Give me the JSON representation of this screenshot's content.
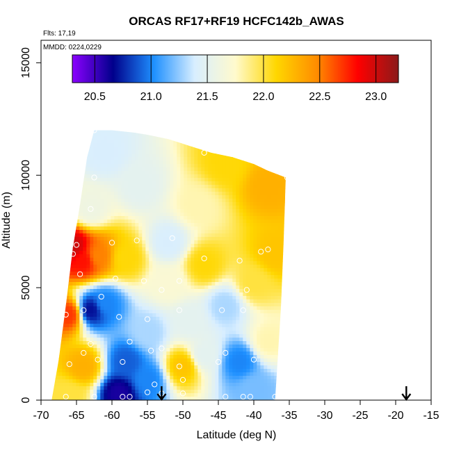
{
  "chart_data": {
    "type": "heatmap",
    "title": "ORCAS RF17+RF19 HCFC142b_AWAS",
    "annotations": [
      "Flts: 17,19",
      "MMDD: 0224,0229"
    ],
    "xlabel": "Latitude (deg N)",
    "ylabel": "Altitude (m)",
    "xlim": [
      -70,
      -15
    ],
    "ylim": [
      0,
      16000
    ],
    "x_ticks": [
      -70,
      -65,
      -60,
      -55,
      -50,
      -45,
      -40,
      -35,
      -30,
      -25,
      -20,
      -15
    ],
    "y_ticks": [
      0,
      5000,
      10000,
      15000
    ],
    "colorbar": {
      "range": [
        20.3,
        23.2
      ],
      "ticks": [
        "20.5",
        "21.0",
        "21.5",
        "22.0",
        "22.5",
        "23.0"
      ],
      "colors": [
        "#8b00ff",
        "#00008b",
        "#1e90ff",
        "#d8eeff",
        "#fffacd",
        "#ffd700",
        "#ff8c00",
        "#ff0000",
        "#8b1a1a"
      ]
    },
    "arrows_at_latitude": [
      -53,
      -18.5
    ],
    "envelope": [
      {
        "lat": -68.5,
        "top": 0
      },
      {
        "lat": -67.5,
        "top": 1800
      },
      {
        "lat": -66.5,
        "top": 4200
      },
      {
        "lat": -65.5,
        "top": 6800
      },
      {
        "lat": -64.5,
        "top": 8700
      },
      {
        "lat": -63.5,
        "top": 10800
      },
      {
        "lat": -62.5,
        "top": 12000
      },
      {
        "lat": -60,
        "top": 12000
      },
      {
        "lat": -57,
        "top": 11900
      },
      {
        "lat": -55,
        "top": 11800
      },
      {
        "lat": -52,
        "top": 11600
      },
      {
        "lat": -49,
        "top": 11300
      },
      {
        "lat": -46,
        "top": 11000
      },
      {
        "lat": -43,
        "top": 10800
      },
      {
        "lat": -40,
        "top": 10500
      },
      {
        "lat": -38,
        "top": 10200
      },
      {
        "lat": -35.5,
        "top": 9900
      }
    ],
    "right_edge": [
      {
        "alt": 9900,
        "lat": -35.5
      },
      {
        "alt": 7000,
        "lat": -35.8
      },
      {
        "alt": 4000,
        "lat": -36.2
      },
      {
        "alt": 2000,
        "lat": -36.6
      },
      {
        "alt": 0,
        "lat": -37
      }
    ],
    "field_anchors": [
      {
        "lat": -65.5,
        "alt": 6800,
        "value": 23.0
      },
      {
        "lat": -64,
        "alt": 6200,
        "value": 22.8
      },
      {
        "lat": -62,
        "alt": 6400,
        "value": 22.5
      },
      {
        "lat": -58,
        "alt": 6300,
        "value": 22.1
      },
      {
        "lat": -66,
        "alt": 3800,
        "value": 22.7
      },
      {
        "lat": -63,
        "alt": 4000,
        "value": 20.7
      },
      {
        "lat": -61,
        "alt": 4300,
        "value": 21.0
      },
      {
        "lat": -58,
        "alt": 1700,
        "value": 20.9
      },
      {
        "lat": -59,
        "alt": 300,
        "value": 20.6
      },
      {
        "lat": -64,
        "alt": 1500,
        "value": 22.3
      },
      {
        "lat": -66,
        "alt": 200,
        "value": 22.0
      },
      {
        "lat": -55,
        "alt": 900,
        "value": 21.0
      },
      {
        "lat": -50,
        "alt": 1500,
        "value": 22.2
      },
      {
        "lat": -47,
        "alt": 2000,
        "value": 21.5
      },
      {
        "lat": -42,
        "alt": 1700,
        "value": 21.0
      },
      {
        "lat": -40,
        "alt": 500,
        "value": 21.2
      },
      {
        "lat": -38,
        "alt": 2600,
        "value": 21.8
      },
      {
        "lat": -44,
        "alt": 4200,
        "value": 21.3
      },
      {
        "lat": -40,
        "alt": 5200,
        "value": 22.0
      },
      {
        "lat": -37,
        "alt": 6500,
        "value": 22.2
      },
      {
        "lat": -38,
        "alt": 9500,
        "value": 22.3
      },
      {
        "lat": -44,
        "alt": 10500,
        "value": 22.1
      },
      {
        "lat": -48,
        "alt": 8600,
        "value": 21.8
      },
      {
        "lat": -52,
        "alt": 7000,
        "value": 21.4
      },
      {
        "lat": -56,
        "alt": 9500,
        "value": 21.5
      },
      {
        "lat": -61,
        "alt": 11000,
        "value": 21.4
      },
      {
        "lat": -63,
        "alt": 8500,
        "value": 21.6
      },
      {
        "lat": -52,
        "alt": 5200,
        "value": 21.7
      },
      {
        "lat": -47,
        "alt": 6000,
        "value": 22.1
      },
      {
        "lat": -55,
        "alt": 3000,
        "value": 21.3
      },
      {
        "lat": -49,
        "alt": 3500,
        "value": 21.5
      }
    ],
    "sample_points": [
      {
        "lat": -62.5,
        "alt": 12000
      },
      {
        "lat": -62.5,
        "alt": 9900
      },
      {
        "lat": -63,
        "alt": 8500
      },
      {
        "lat": -47,
        "alt": 11000
      },
      {
        "lat": -35.3,
        "alt": 9900
      },
      {
        "lat": -65,
        "alt": 6900
      },
      {
        "lat": -65.5,
        "alt": 6500
      },
      {
        "lat": -64.5,
        "alt": 5600
      },
      {
        "lat": -60,
        "alt": 7000
      },
      {
        "lat": -56.5,
        "alt": 7100
      },
      {
        "lat": -51.5,
        "alt": 7200
      },
      {
        "lat": -47,
        "alt": 6300
      },
      {
        "lat": -42,
        "alt": 6200
      },
      {
        "lat": -39,
        "alt": 6600
      },
      {
        "lat": -38,
        "alt": 6700
      },
      {
        "lat": -59.5,
        "alt": 5400
      },
      {
        "lat": -55.5,
        "alt": 5300
      },
      {
        "lat": -53,
        "alt": 4900
      },
      {
        "lat": -50.5,
        "alt": 5300
      },
      {
        "lat": -35.5,
        "alt": 5100
      },
      {
        "lat": -61.5,
        "alt": 4600
      },
      {
        "lat": -41,
        "alt": 4900
      },
      {
        "lat": -44.5,
        "alt": 4000
      },
      {
        "lat": -41.5,
        "alt": 4000
      },
      {
        "lat": -50.5,
        "alt": 4000
      },
      {
        "lat": -64,
        "alt": 4000
      },
      {
        "lat": -66.5,
        "alt": 3800
      },
      {
        "lat": -59,
        "alt": 3700
      },
      {
        "lat": -55,
        "alt": 3600
      },
      {
        "lat": -57.5,
        "alt": 2600
      },
      {
        "lat": -63,
        "alt": 2500
      },
      {
        "lat": -54.5,
        "alt": 2200
      },
      {
        "lat": -53,
        "alt": 2300
      },
      {
        "lat": -64,
        "alt": 2100
      },
      {
        "lat": -44,
        "alt": 2100
      },
      {
        "lat": -36,
        "alt": 2600
      },
      {
        "lat": -58.5,
        "alt": 1700
      },
      {
        "lat": -62,
        "alt": 1800
      },
      {
        "lat": -66,
        "alt": 1600
      },
      {
        "lat": -45,
        "alt": 1700
      },
      {
        "lat": -40,
        "alt": 1800
      },
      {
        "lat": -50.5,
        "alt": 1500
      },
      {
        "lat": -50,
        "alt": 900
      },
      {
        "lat": -54,
        "alt": 700
      },
      {
        "lat": -58.5,
        "alt": 150
      },
      {
        "lat": -57.5,
        "alt": 150
      },
      {
        "lat": -66.5,
        "alt": 150
      },
      {
        "lat": -62.5,
        "alt": 150
      },
      {
        "lat": -55,
        "alt": 350
      },
      {
        "lat": -53,
        "alt": 300
      },
      {
        "lat": -50,
        "alt": 300
      },
      {
        "lat": -44,
        "alt": 150
      },
      {
        "lat": -41.5,
        "alt": 150
      },
      {
        "lat": -40.5,
        "alt": 150
      },
      {
        "lat": -37,
        "alt": 150
      }
    ]
  }
}
